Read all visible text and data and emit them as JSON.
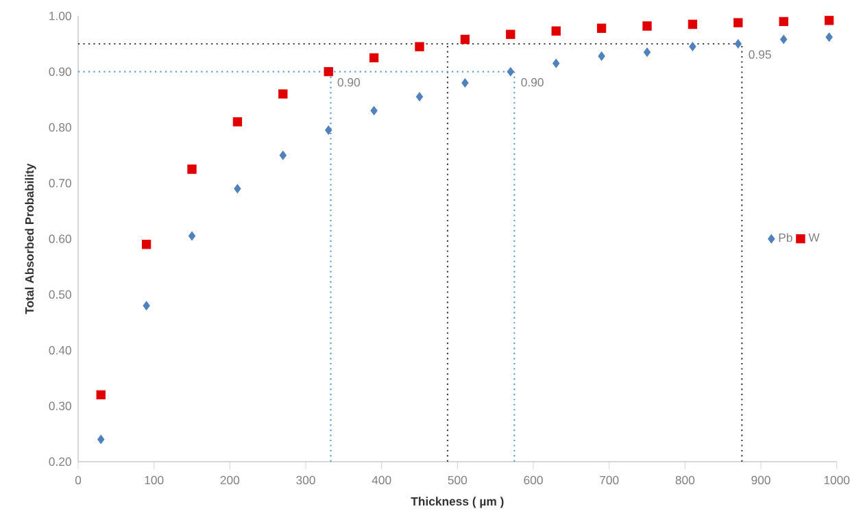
{
  "chart_data": {
    "type": "scatter",
    "xlabel": "Thickness ( µm )",
    "ylabel": "Total Absorbed Probability",
    "x": [
      30,
      90,
      150,
      210,
      270,
      330,
      390,
      450,
      510,
      570,
      630,
      690,
      750,
      810,
      870,
      930,
      990
    ],
    "series": [
      {
        "name": "Pb",
        "color": "#4f81bd",
        "marker": "diamond",
        "values": [
          0.24,
          0.48,
          0.605,
          0.69,
          0.75,
          0.795,
          0.83,
          0.855,
          0.88,
          0.9,
          0.915,
          0.928,
          0.935,
          0.945,
          0.95,
          0.958,
          0.962
        ]
      },
      {
        "name": "W",
        "color": "#e00000",
        "marker": "square",
        "values": [
          0.32,
          0.59,
          0.725,
          0.81,
          0.86,
          0.9,
          0.925,
          0.945,
          0.958,
          0.967,
          0.973,
          0.978,
          0.982,
          0.985,
          0.988,
          0.99,
          0.992
        ]
      }
    ],
    "xlim": [
      0,
      1000
    ],
    "xticks": [
      0,
      100,
      200,
      300,
      400,
      500,
      600,
      700,
      800,
      900,
      1000
    ],
    "ylim": [
      0.2,
      1.0
    ],
    "yticks": [
      {
        "value": 0.2,
        "label": "0.20"
      },
      {
        "value": 0.3,
        "label": "0.30"
      },
      {
        "value": 0.4,
        "label": "0.40"
      },
      {
        "value": 0.5,
        "label": "0.50"
      },
      {
        "value": 0.6,
        "label": "0.60"
      },
      {
        "value": 0.7,
        "label": "0.70"
      },
      {
        "value": 0.8,
        "label": "0.80"
      },
      {
        "value": 0.9,
        "label": "0.90"
      },
      {
        "value": 1.0,
        "label": "1.00"
      }
    ],
    "ref_lines": [
      {
        "axis": "y",
        "value": 0.95,
        "color": "#404040",
        "line_style": "dotted"
      },
      {
        "axis": "x",
        "value": 487,
        "color": "#404040",
        "line_style": "dotted"
      },
      {
        "axis": "x",
        "value": 875,
        "color": "#404040",
        "line_style": "dotted"
      },
      {
        "axis": "y",
        "value": 0.9,
        "color": "#5b9bd5",
        "line_style": "dotted"
      },
      {
        "axis": "x",
        "value": 333,
        "color": "#5b9bd5",
        "line_style": "dotted"
      },
      {
        "axis": "x",
        "value": 575,
        "color": "#5b9bd5",
        "line_style": "dotted"
      }
    ],
    "annotations": [
      {
        "text": "0.90",
        "x": 333,
        "y": 0.9
      },
      {
        "text": "0.90",
        "x": 575,
        "y": 0.9
      },
      {
        "text": "0.95",
        "x": 875,
        "y": 0.95
      }
    ],
    "legend": "right",
    "grid": false
  }
}
